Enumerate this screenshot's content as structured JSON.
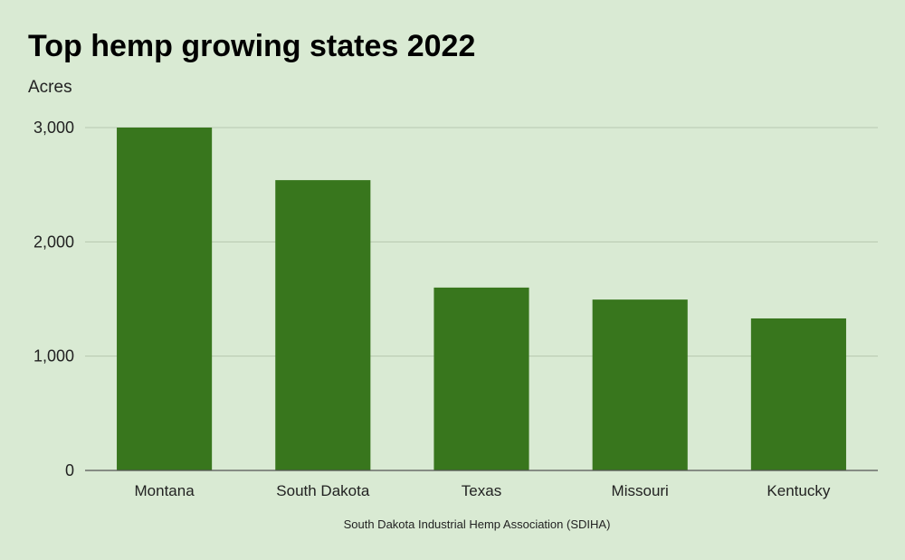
{
  "title": "Top hemp growing states 2022",
  "source_note": "South Dakota Industrial Hemp Association (SDIHA)",
  "colors": {
    "bar": "#38761d",
    "background": "#d9ead3",
    "grid": "#b7c8b0",
    "baseline": "#555555"
  },
  "chart_data": {
    "type": "bar",
    "title": "Top hemp growing states 2022",
    "xlabel": "",
    "ylabel": "Acres",
    "categories": [
      "Montana",
      "South Dakota",
      "Texas",
      "Missouri",
      "Kentucky"
    ],
    "values": [
      3000,
      2540,
      1600,
      1495,
      1330
    ],
    "ylim": [
      0,
      3000
    ],
    "yticks": [
      0,
      1000,
      2000,
      3000
    ],
    "ytick_labels": [
      "0",
      "1,000",
      "2,000",
      "3,000"
    ],
    "grid": true,
    "legend": "none"
  }
}
